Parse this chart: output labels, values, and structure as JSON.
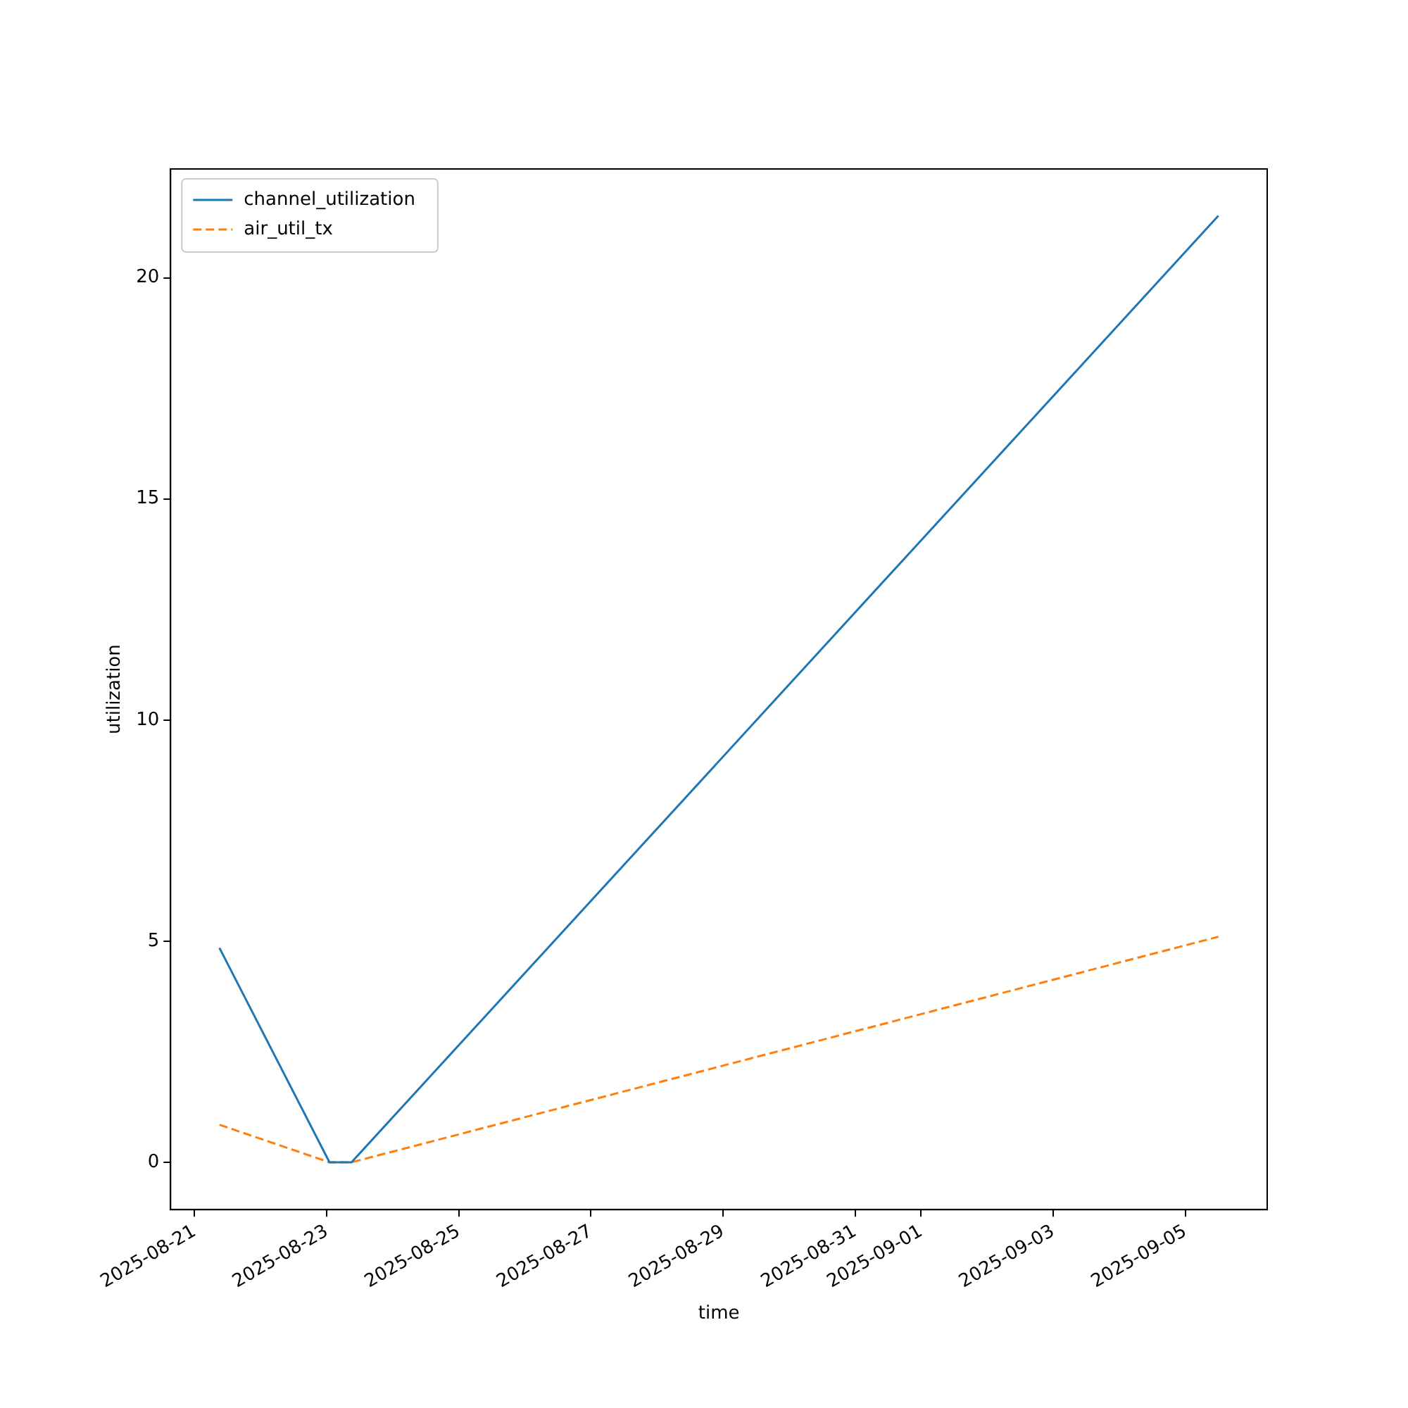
{
  "chart_data": {
    "type": "line",
    "xlabel": "time",
    "ylabel": "utilization",
    "x": [
      "2025-08-21T09:00",
      "2025-08-23T01:00",
      "2025-08-23T09:00",
      "2025-09-05T12:00"
    ],
    "series": [
      {
        "name": "channel_utilization",
        "color": "#1f77b4",
        "values": [
          4.85,
          0,
          0,
          21.4
        ],
        "line_style": "solid"
      },
      {
        "name": "air_util_tx",
        "color": "#ff7f0e",
        "values": [
          0.85,
          0,
          0,
          5.1
        ],
        "line_style": "dashed"
      }
    ],
    "xlim": [
      "2025-08-20T15:15",
      "2025-09-06T05:45"
    ],
    "xticks": [
      "2025-08-21",
      "2025-08-23",
      "2025-08-25",
      "2025-08-27",
      "2025-08-29",
      "2025-08-31",
      "2025-09-01",
      "2025-09-03",
      "2025-09-05"
    ],
    "ylim": [
      -1.07,
      22.46
    ],
    "yticks": [
      0,
      5,
      10,
      15,
      20
    ],
    "grid": false,
    "legend": "top left",
    "marker": "none"
  }
}
